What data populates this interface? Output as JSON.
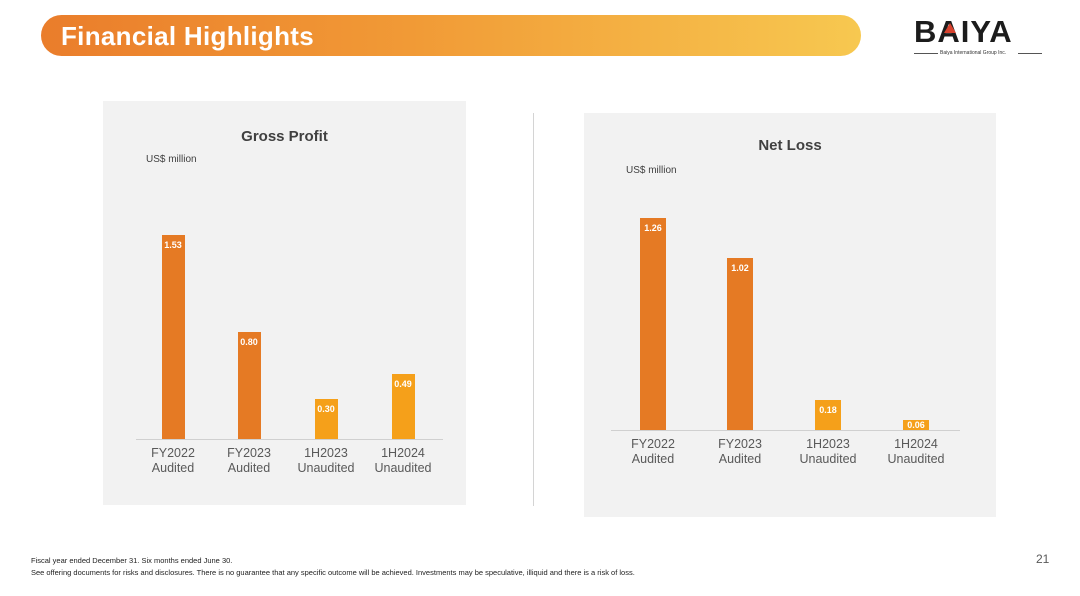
{
  "header": {
    "title": "Financial Highlights"
  },
  "logo": {
    "name": "BAIYA",
    "subtitle": "Baiya International Group Inc."
  },
  "chart_data": [
    {
      "type": "bar",
      "title": "Gross Profit",
      "unit": "US$ million",
      "categories": [
        [
          "FY2022",
          "Audited"
        ],
        [
          "FY2023",
          "Audited"
        ],
        [
          "1H2023",
          "Unaudited"
        ],
        [
          "1H2024",
          "Unaudited"
        ]
      ],
      "values": [
        1.53,
        0.8,
        0.3,
        0.49
      ],
      "labels": [
        "1.53",
        "0.80",
        "0.30",
        "0.49"
      ],
      "colors": [
        "#e57a24",
        "#e57a24",
        "#f5a01a",
        "#f5a01a"
      ]
    },
    {
      "type": "bar",
      "title": "Net Loss",
      "unit": "US$ million",
      "categories": [
        [
          "FY2022",
          "Audited"
        ],
        [
          "FY2023",
          "Audited"
        ],
        [
          "1H2023",
          "Unaudited"
        ],
        [
          "1H2024",
          "Unaudited"
        ]
      ],
      "values": [
        1.26,
        1.02,
        0.18,
        0.06
      ],
      "labels": [
        "1.26",
        "1.02",
        "0.18",
        "0.06"
      ],
      "colors": [
        "#e57a24",
        "#e57a24",
        "#f5a01a",
        "#f5a01a"
      ]
    }
  ],
  "footnotes": [
    "Fiscal year ended December 31. Six months ended June 30.",
    "See offering documents for risks and disclosures. There is no guarantee that any specific outcome will be achieved. Investments may be speculative, illiquid and there is a risk of loss."
  ],
  "page_number": "21"
}
